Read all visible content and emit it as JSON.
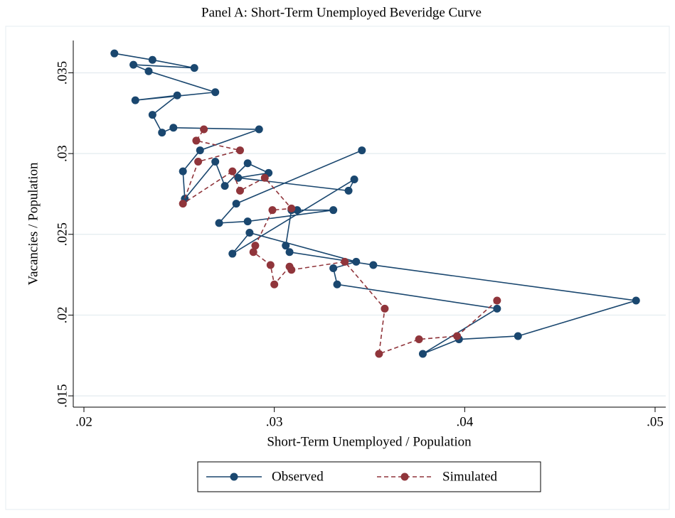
{
  "chart_data": {
    "type": "line",
    "title": "Panel A: Short-Term Unemployed Beveridge Curve",
    "x_label": "Short-Term Unemployed / Population",
    "y_label": "Vacancies / Population",
    "xlim": [
      0.01944,
      0.05056
    ],
    "ylim": [
      0.0143,
      0.037
    ],
    "xticks": [
      {
        "value": 0.02,
        "label": ".02"
      },
      {
        "value": 0.03,
        "label": ".03"
      },
      {
        "value": 0.04,
        "label": ".04"
      },
      {
        "value": 0.05,
        "label": ".05"
      }
    ],
    "yticks": [
      {
        "value": 0.015,
        "label": ".015"
      },
      {
        "value": 0.02,
        "label": ".02"
      },
      {
        "value": 0.025,
        "label": ".025"
      },
      {
        "value": 0.03,
        "label": ".03"
      },
      {
        "value": 0.035,
        "label": ".035"
      }
    ],
    "grid": true,
    "legend": "bottom",
    "series": [
      {
        "name": "Observed",
        "color": "#1a476f",
        "dash": false,
        "x": [
          0.0346,
          0.028,
          0.0271,
          0.0286,
          0.0331,
          0.0312,
          0.0309,
          0.0306,
          0.0308,
          0.0352,
          0.049,
          0.0428,
          0.0397,
          0.0378,
          0.0417,
          0.0333,
          0.0331,
          0.0343,
          0.0287,
          0.0278,
          0.0342,
          0.0339,
          0.0281,
          0.0297,
          0.0286,
          0.0274,
          0.0269,
          0.0253,
          0.0252,
          0.0261,
          0.0292,
          0.0247,
          0.0241,
          0.0236,
          0.0249,
          0.0227,
          0.0269,
          0.0234,
          0.0226,
          0.0258,
          0.0236,
          0.0216
        ],
        "values": [
          0.0302,
          0.0269,
          0.0257,
          0.0258,
          0.0265,
          0.0265,
          0.0265,
          0.0243,
          0.0239,
          0.0231,
          0.0209,
          0.0187,
          0.0185,
          0.0176,
          0.0204,
          0.0219,
          0.0229,
          0.0233,
          0.0251,
          0.0238,
          0.0284,
          0.0277,
          0.0285,
          0.0288,
          0.0294,
          0.028,
          0.0295,
          0.0272,
          0.0289,
          0.0302,
          0.0315,
          0.0316,
          0.0313,
          0.0324,
          0.0336,
          0.0333,
          0.0338,
          0.0351,
          0.0355,
          0.0353,
          0.0358,
          0.0362
        ]
      },
      {
        "name": "Simulated",
        "color": "#90353b",
        "dash": true,
        "x": [
          0.0417,
          0.0396,
          0.0376,
          0.0355,
          0.0358,
          0.0337,
          0.0309,
          0.0308,
          0.03,
          0.0298,
          0.0289,
          0.029,
          0.0299,
          0.0309,
          0.0295,
          0.0282,
          0.0278,
          0.0252,
          0.026,
          0.0282,
          0.0259,
          0.0263
        ],
        "values": [
          0.0209,
          0.0187,
          0.0185,
          0.0176,
          0.0204,
          0.0233,
          0.0228,
          0.023,
          0.0219,
          0.0231,
          0.0239,
          0.0243,
          0.0265,
          0.0266,
          0.0285,
          0.0277,
          0.0289,
          0.0269,
          0.0295,
          0.0302,
          0.0308,
          0.0315
        ]
      }
    ]
  }
}
